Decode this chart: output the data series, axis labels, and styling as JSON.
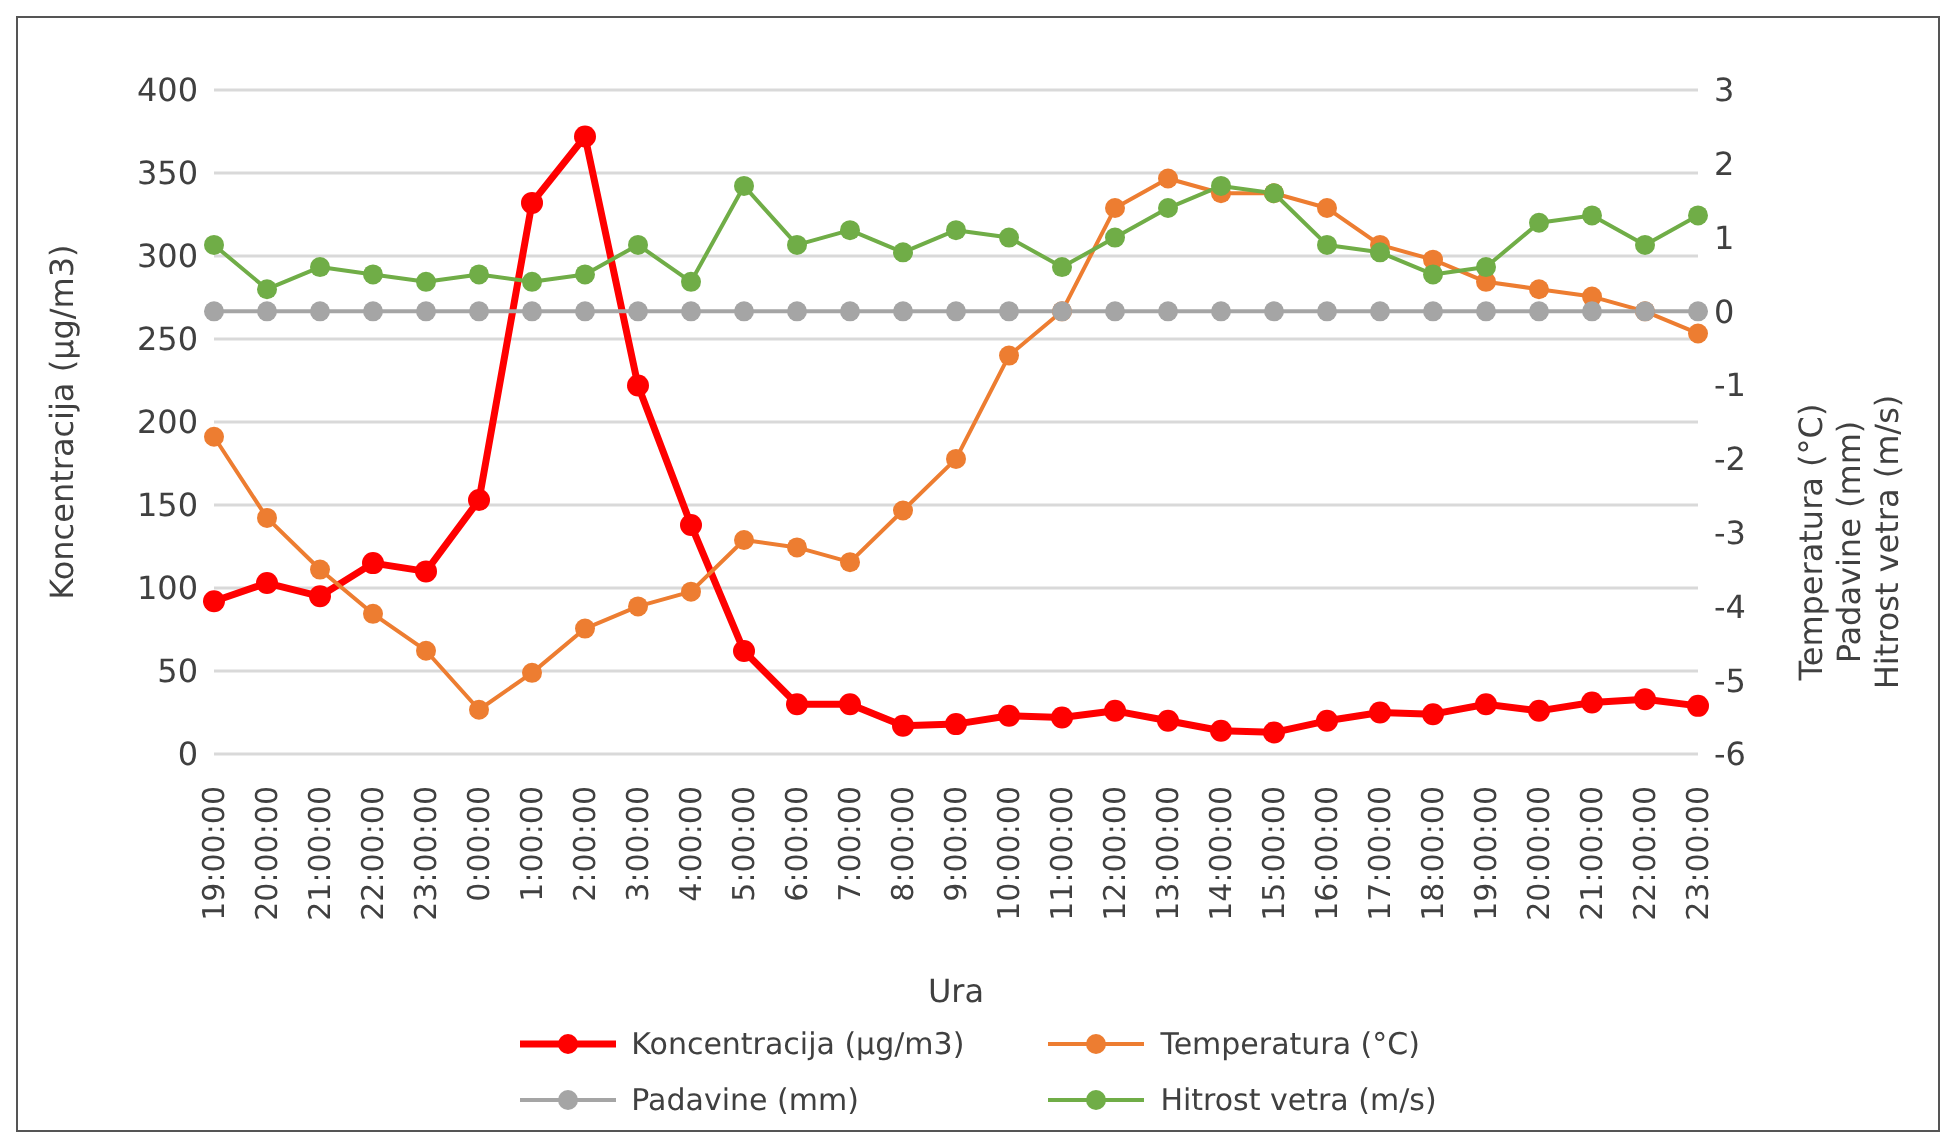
{
  "chart_data": {
    "type": "line",
    "xlabel": "Ura",
    "ylabel": "Koncentracija (µg/m3)",
    "y2label": "Temperatura (°C)\nPadavine (mm)\nHitrost vetra (m/s)",
    "categories": [
      "19:00:00",
      "20:00:00",
      "21:00:00",
      "22:00:00",
      "23:00:00",
      "0:00:00",
      "1:00:00",
      "2:00:00",
      "3:00:00",
      "4:00:00",
      "5:00:00",
      "6:00:00",
      "7:00:00",
      "8:00:00",
      "9:00:00",
      "10:00:00",
      "11:00:00",
      "12:00:00",
      "13:00:00",
      "14:00:00",
      "15:00:00",
      "16:00:00",
      "17:00:00",
      "18:00:00",
      "19:00:00",
      "20:00:00",
      "21:00:00",
      "22:00:00",
      "23:00:00"
    ],
    "series": [
      {
        "name": "Koncentracija (µg/m3)",
        "color": "#ff0000",
        "values": [
          92,
          103,
          95,
          115,
          110,
          153,
          332,
          372,
          222,
          138,
          62,
          30,
          30,
          17,
          18,
          23,
          22,
          26,
          20,
          14,
          13,
          20,
          25,
          24,
          30,
          26,
          31,
          33,
          29
        ]
      },
      {
        "name": "Temperatura (°C)",
        "color": "#ed7d31",
        "axis": "y2",
        "values": [
          -1.7,
          -2.8,
          -3.5,
          -4.1,
          -4.6,
          -5.4,
          -4.9,
          -4.3,
          -4.0,
          -3.8,
          -3.1,
          -3.2,
          -3.4,
          -2.7,
          -2.0,
          -0.6,
          0,
          1.4,
          1.8,
          1.6,
          1.6,
          1.4,
          0.9,
          0.7,
          0.4,
          0.3,
          0.2,
          0,
          -0.3
        ]
      },
      {
        "name": "Padavine (mm)",
        "color": "#a5a5a5",
        "axis": "y2",
        "values": [
          0,
          0,
          0,
          0,
          0,
          0,
          0,
          0,
          0,
          0,
          0,
          0,
          0,
          0,
          0,
          0,
          0,
          0,
          0,
          0,
          0,
          0,
          0,
          0,
          0,
          0,
          0,
          0,
          0
        ]
      },
      {
        "name": "Hitrost vetra (m/s)",
        "color": "#70ad47",
        "axis": "y2",
        "values": [
          0.9,
          0.3,
          0.6,
          0.5,
          0.4,
          0.5,
          0.4,
          0.5,
          0.9,
          0.4,
          1.7,
          0.9,
          1.1,
          0.8,
          1.1,
          1.0,
          0.6,
          1.0,
          1.4,
          1.7,
          1.6,
          0.9,
          0.8,
          0.5,
          0.6,
          1.2,
          1.3,
          0.9,
          1.3
        ]
      }
    ],
    "ylim": [
      0,
      400
    ],
    "yticks": [
      0,
      50,
      100,
      150,
      200,
      250,
      300,
      350,
      400
    ],
    "y2lim": [
      -6,
      3
    ],
    "y2ticks": [
      -6,
      -5,
      -4,
      -3,
      -2,
      -1,
      0,
      1,
      2,
      3
    ],
    "grid": "y",
    "legend": "bottom",
    "marker": "circle",
    "line_style": "solid"
  }
}
